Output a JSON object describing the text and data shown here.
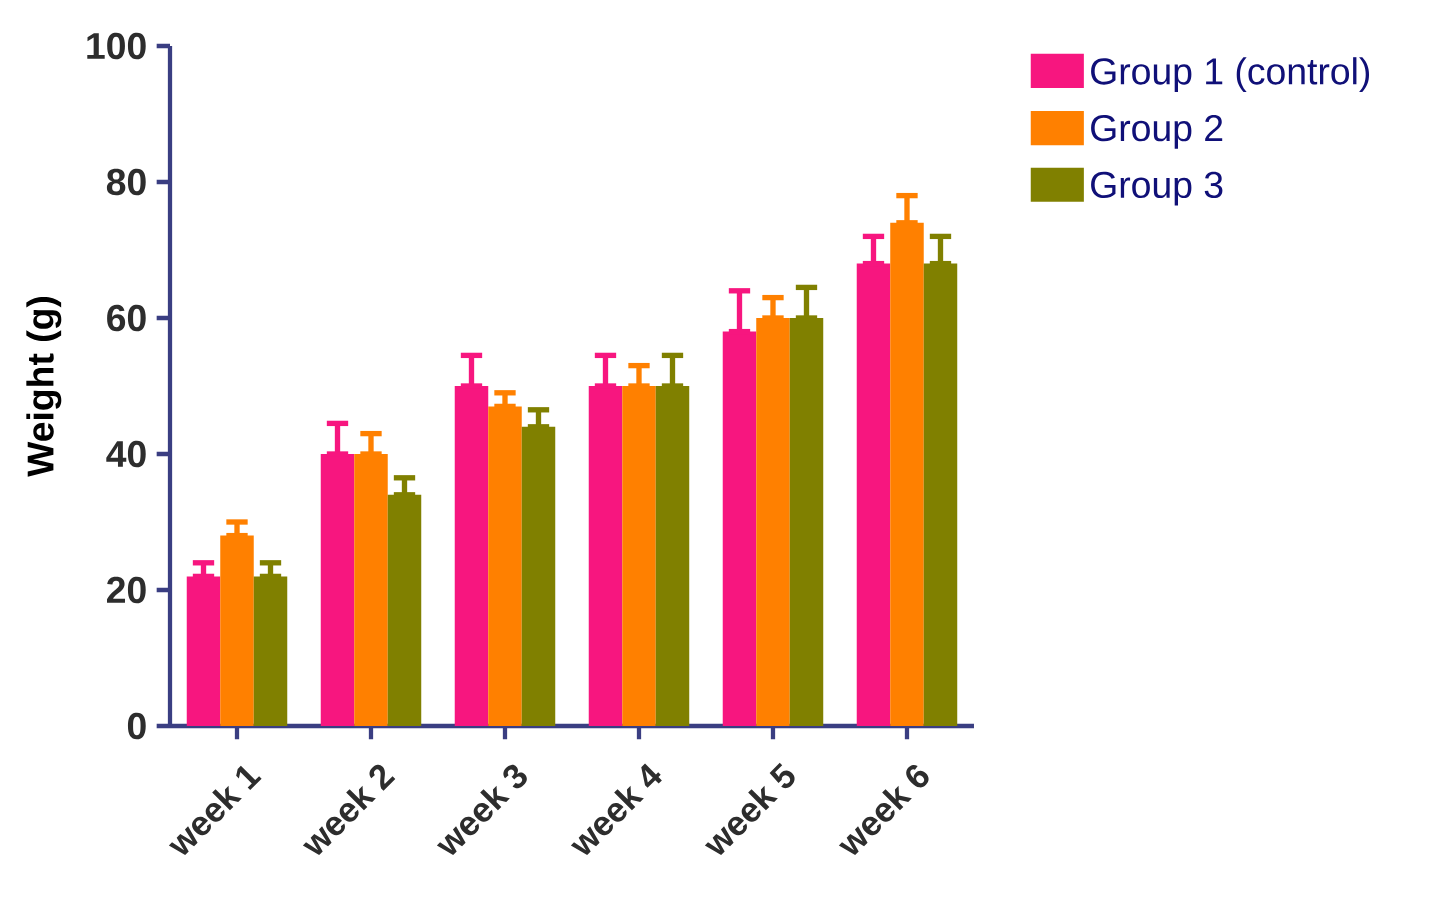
{
  "chart_data": {
    "type": "bar",
    "ylabel": "Weight (g)",
    "categories": [
      "week 1",
      "week 2",
      "week 3",
      "week 4",
      "week 5",
      "week 6"
    ],
    "series": [
      {
        "name": "Group 1 (control)",
        "color": "#f7167f",
        "values": [
          22,
          40,
          50,
          50,
          58,
          68
        ],
        "errors": [
          [
            22,
            24
          ],
          [
            40,
            44.5
          ],
          [
            50,
            54.5
          ],
          [
            50,
            54.5
          ],
          [
            58,
            64
          ],
          [
            68,
            72
          ]
        ]
      },
      {
        "name": "Group 2",
        "color": "#ff8000",
        "values": [
          28,
          40,
          47,
          50,
          60,
          74
        ],
        "errors": [
          [
            28,
            30
          ],
          [
            40,
            43
          ],
          [
            47,
            49
          ],
          [
            50,
            53
          ],
          [
            60,
            63
          ],
          [
            74,
            78
          ]
        ]
      },
      {
        "name": "Group 3",
        "color": "#808000",
        "values": [
          22,
          34,
          44,
          50,
          60,
          68
        ],
        "errors": [
          [
            22,
            24
          ],
          [
            34,
            36.5
          ],
          [
            44,
            46.5
          ],
          [
            50,
            54.5
          ],
          [
            60,
            64.5
          ],
          [
            68,
            72
          ]
        ]
      }
    ],
    "ylim": [
      0,
      100
    ],
    "yticks": [
      0,
      20,
      40,
      60,
      80,
      100
    ],
    "grid": false,
    "legend": "top right"
  }
}
